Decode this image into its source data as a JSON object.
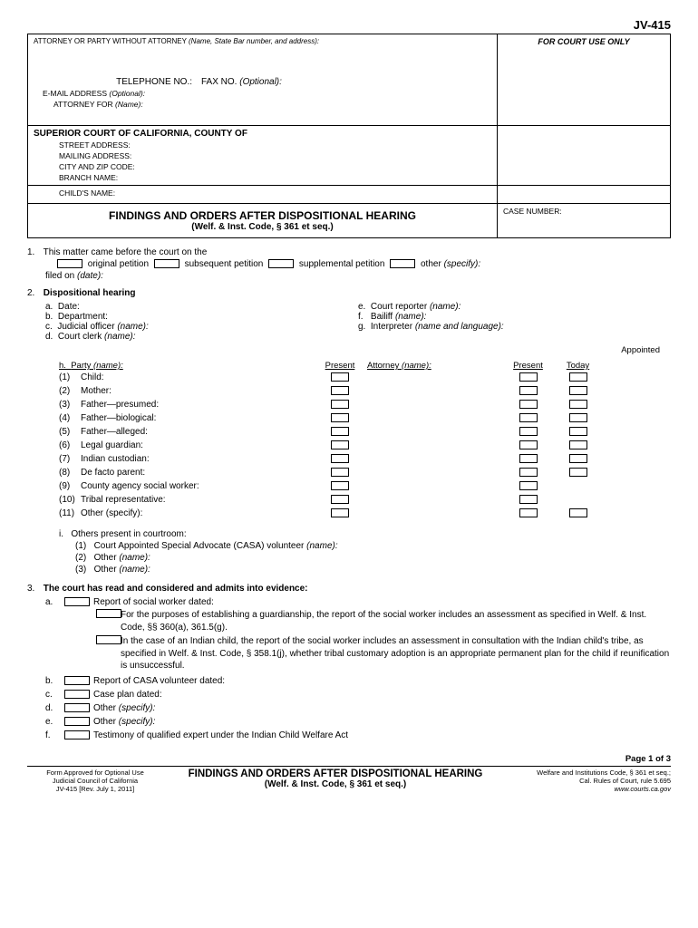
{
  "form_number": "JV-415",
  "header": {
    "attorney_label": "ATTORNEY OR PARTY WITHOUT ATTORNEY",
    "attorney_sub": "(Name, State Bar number, and address):",
    "court_use": "FOR COURT USE ONLY",
    "telephone": "TELEPHONE NO.:",
    "fax": "FAX NO.",
    "fax_opt": "(Optional):",
    "email": "E-MAIL ADDRESS",
    "email_opt": "(Optional):",
    "attorney_for": "ATTORNEY FOR",
    "attorney_for_sub": "(Name):"
  },
  "court": {
    "title": "SUPERIOR COURT OF CALIFORNIA, COUNTY OF",
    "street": "STREET ADDRESS:",
    "mailing": "MAILING ADDRESS:",
    "cityzip": "CITY AND ZIP CODE:",
    "branch": "BRANCH NAME:"
  },
  "child_name_label": "CHILD'S NAME:",
  "title_main": "FINDINGS AND ORDERS AFTER DISPOSITIONAL HEARING",
  "title_sub": "(Welf. & Inst. Code, § 361 et seq.)",
  "case_number_label": "CASE NUMBER:",
  "item1": {
    "text": "This matter came before the court on the",
    "original": "original petition",
    "subsequent": "subsequent petition",
    "supplemental": "supplemental petition",
    "other": "other",
    "specify": "(specify):",
    "filed": "filed on",
    "date": "(date):"
  },
  "item2": {
    "title": "Dispositional hearing",
    "a": "Date:",
    "b": "Department:",
    "c": "Judicial officer",
    "d": "Court clerk",
    "e": "Court reporter",
    "f": "Bailiff",
    "g": "Interpreter",
    "g_sub": "(name and language):",
    "name": "(name):",
    "appointed": "Appointed",
    "h_party": "Party",
    "h_present": "Present",
    "h_attorney": "Attorney",
    "h_today": "Today",
    "parties": [
      {
        "num": "(1)",
        "label": "Child:"
      },
      {
        "num": "(2)",
        "label": "Mother:"
      },
      {
        "num": "(3)",
        "label": "Father—presumed:"
      },
      {
        "num": "(4)",
        "label": "Father—biological:"
      },
      {
        "num": "(5)",
        "label": "Father—alleged:"
      },
      {
        "num": "(6)",
        "label": "Legal guardian:"
      },
      {
        "num": "(7)",
        "label": "Indian custodian:"
      },
      {
        "num": "(8)",
        "label": "De facto parent:"
      },
      {
        "num": "(9)",
        "label": "County agency social worker:"
      },
      {
        "num": "(10)",
        "label": "Tribal representative:"
      },
      {
        "num": "(11)",
        "label": "Other (specify):"
      }
    ],
    "i_text": "Others present in courtroom:",
    "i1": "Court Appointed Special Advocate (CASA) volunteer",
    "i2": "Other",
    "i3": "Other"
  },
  "item3": {
    "title": "The court has read and considered and admits into evidence:",
    "a": "Report of social worker dated:",
    "a1": "For the purposes of establishing a guardianship, the report of the social worker includes an assessment as specified in Welf. & Inst. Code, §§ 360(a), 361.5(g).",
    "a2": "In the case of an Indian child, the report of the social worker includes an assessment in consultation with the Indian child's tribe, as specified in Welf. & Inst. Code, § 358.1(j), whether tribal customary adoption is an appropriate permanent plan for the child if reunification is unsuccessful.",
    "b": "Report of CASA volunteer dated:",
    "c": "Case plan dated:",
    "d": "Other",
    "e": "Other",
    "f": "Testimony of qualified expert under the Indian Child Welfare Act",
    "specify": "(specify):"
  },
  "footer": {
    "page": "Page 1 of 3",
    "left1": "Form Approved for Optional Use",
    "left2": "Judicial Council of California",
    "left3": "JV-415 [Rev. July 1, 2011]",
    "center1": "FINDINGS AND ORDERS AFTER DISPOSITIONAL HEARING",
    "center2": "(Welf. & Inst. Code, § 361 et seq.)",
    "right1": "Welfare and Institutions Code, § 361 et seq.;",
    "right2": "Cal. Rules of Court, rule 5.695",
    "right3": "www.courts.ca.gov"
  }
}
